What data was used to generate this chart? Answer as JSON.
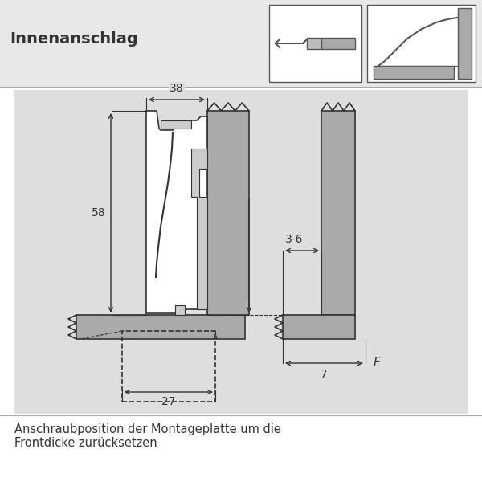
{
  "title": "Innenanschlag",
  "bg_header": "#e8e8e8",
  "bg_main": "#dedede",
  "col_white": "#ffffff",
  "col_dark": "#333333",
  "col_gray": "#aaaaaa",
  "col_mid": "#bbbbbb",
  "dim_38": "38",
  "dim_58": "58",
  "dim_27": "27",
  "dim_36": "3-6",
  "dim_7": "7",
  "dim_F": "F",
  "footer1": "Anschraubposition der Montageplatte um die",
  "footer2": "Frontdicke zurücksetzen"
}
